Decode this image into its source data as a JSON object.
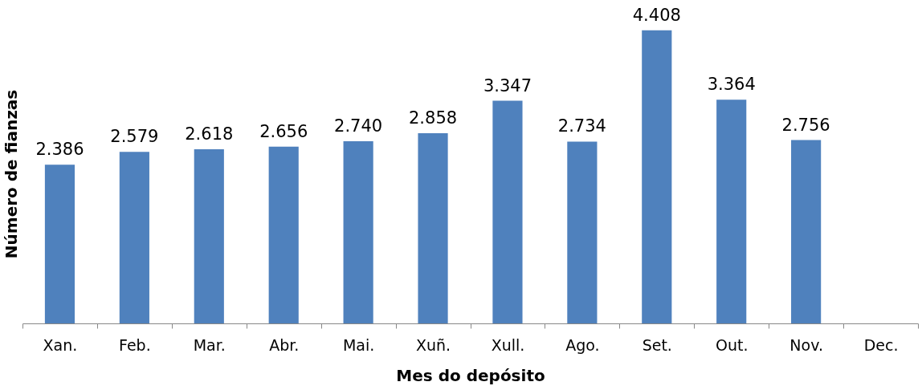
{
  "chart_data": {
    "type": "bar",
    "xlabel": "Mes do depósito",
    "ylabel": "Número de fianzas",
    "categories": [
      "Xan.",
      "Feb.",
      "Mar.",
      "Abr.",
      "Mai.",
      "Xuñ.",
      "Xull.",
      "Ago.",
      "Set.",
      "Out.",
      "Nov.",
      "Dec."
    ],
    "values": [
      2386,
      2579,
      2618,
      2656,
      2740,
      2858,
      3347,
      2734,
      4408,
      3364,
      2756,
      null
    ],
    "value_labels": [
      "2.386",
      "2.579",
      "2.618",
      "2.656",
      "2.740",
      "2.858",
      "3.347",
      "2.734",
      "4.408",
      "3.364",
      "2.756",
      null
    ],
    "color": "#4f81bd",
    "grid": false
  }
}
